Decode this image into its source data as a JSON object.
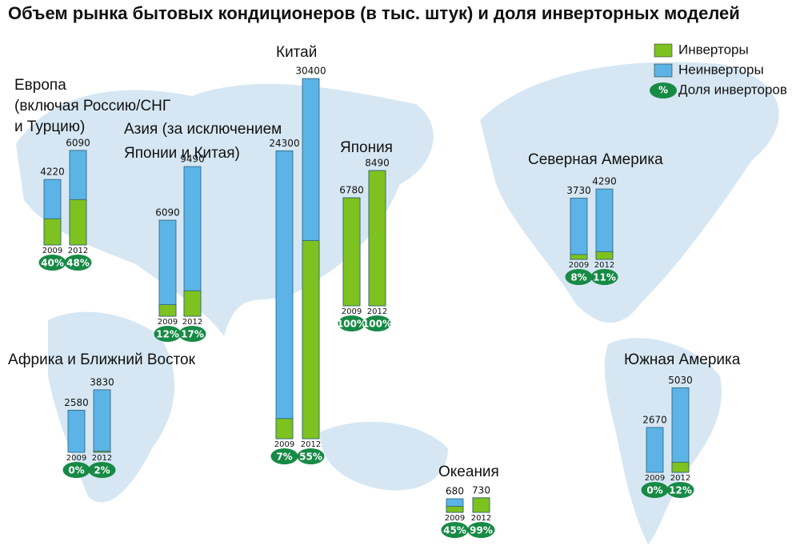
{
  "chart_data": {
    "type": "stacked-bar-map",
    "title": "Объем рынка бытовых кондиционеров (в тыс. штук) и доля инверторных моделей",
    "legend": {
      "inverter": "Инверторы",
      "non_inverter": "Неинверторы",
      "share_symbol": "%",
      "share": "Доля инверторов"
    },
    "colors": {
      "inverter": "#7dc21e",
      "non_inverter": "#5bb4e5",
      "share": "#178a45"
    },
    "regions": [
      {
        "name": [
          "Европа",
          "(включая Россию/СНГ",
          "и Турцию)"
        ],
        "years": [
          "2009",
          "2012"
        ],
        "totals": [
          4220,
          6090
        ],
        "shares": [
          40,
          48
        ],
        "value_labels": [
          "40%",
          "48%"
        ]
      },
      {
        "name": [
          "Азия (за исключением",
          "Японии и Китая)"
        ],
        "years": [
          "2009",
          "2012"
        ],
        "totals": [
          6090,
          9490
        ],
        "shares": [
          12,
          17
        ],
        "value_labels": [
          "12%",
          "17%"
        ]
      },
      {
        "name": [
          "Китай"
        ],
        "years": [
          "2009",
          "2012"
        ],
        "totals": [
          24300,
          30400
        ],
        "shares": [
          7,
          55
        ],
        "value_labels": [
          "7%",
          "55%"
        ]
      },
      {
        "name": [
          "Япония"
        ],
        "years": [
          "2009",
          "2012"
        ],
        "totals": [
          6780,
          8490
        ],
        "shares": [
          100,
          100
        ],
        "value_labels": [
          "100%",
          "100%"
        ]
      },
      {
        "name": [
          "Северная Америка"
        ],
        "years": [
          "2009",
          "2012"
        ],
        "totals": [
          3730,
          4290
        ],
        "shares": [
          8,
          11
        ],
        "value_labels": [
          "8%",
          "11%"
        ]
      },
      {
        "name": [
          "Южная Америка"
        ],
        "years": [
          "2009",
          "2012"
        ],
        "totals": [
          2670,
          5030
        ],
        "shares": [
          0,
          12
        ],
        "value_labels": [
          "0%",
          "12%"
        ]
      },
      {
        "name": [
          "Африка и Ближний Восток"
        ],
        "years": [
          "2009",
          "2012"
        ],
        "totals": [
          2580,
          3830
        ],
        "shares": [
          0,
          2
        ],
        "value_labels": [
          "0%",
          "2%"
        ]
      },
      {
        "name": [
          "Океания"
        ],
        "years": [
          "2009",
          "2012"
        ],
        "totals": [
          680,
          730
        ],
        "shares": [
          45,
          99
        ],
        "value_labels": [
          "45%",
          "99%"
        ]
      }
    ]
  }
}
